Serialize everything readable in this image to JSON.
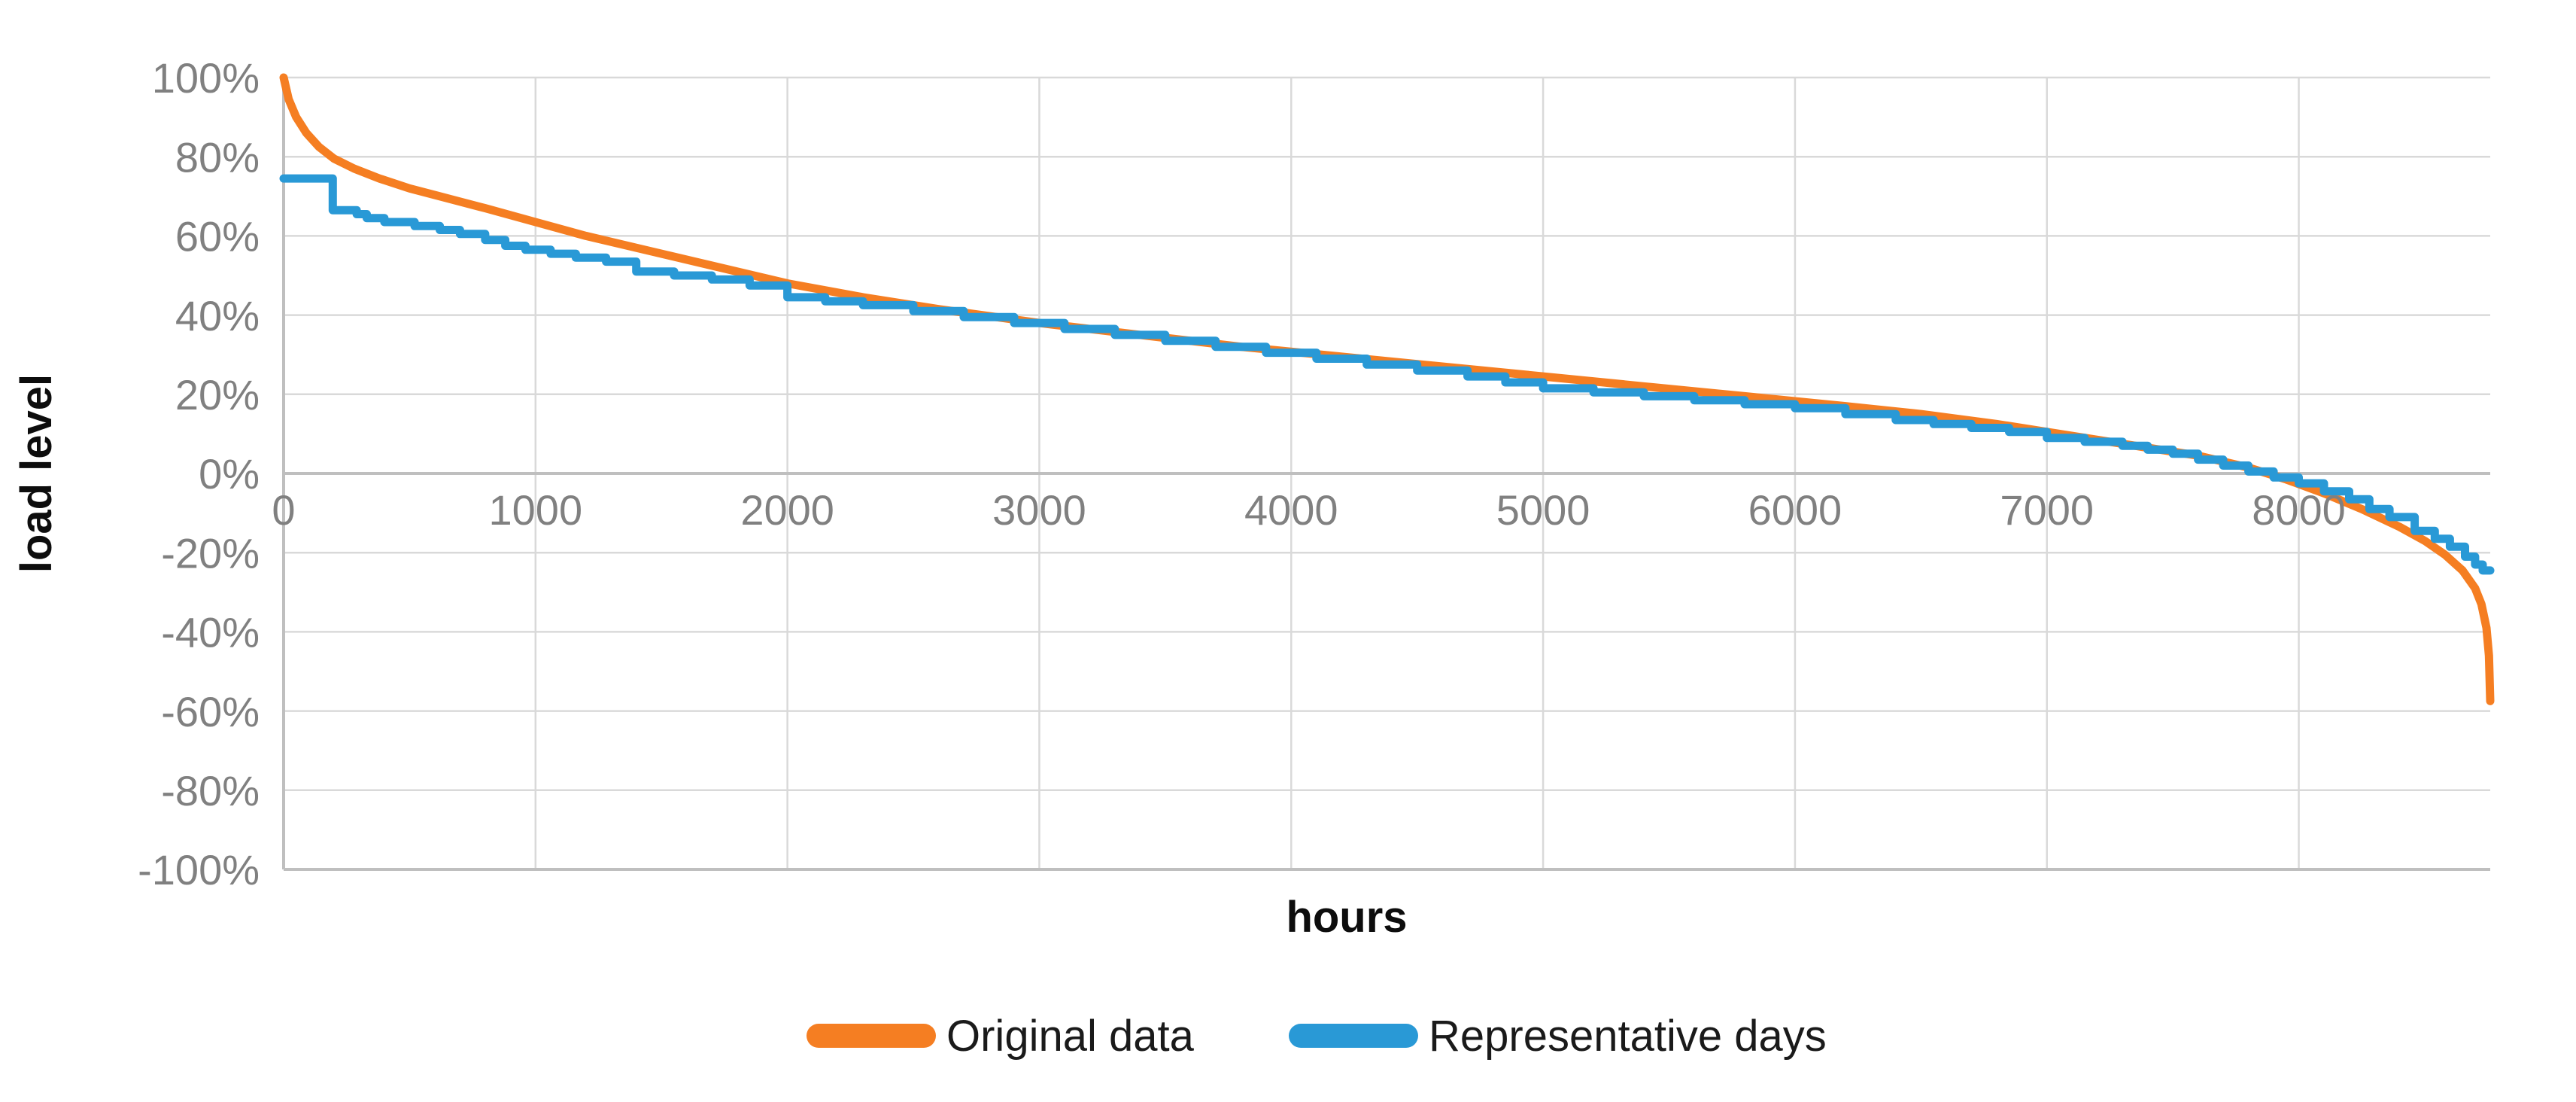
{
  "chart_data": {
    "type": "line",
    "title": "",
    "xlabel": "hours",
    "ylabel": "load level",
    "x_min": 0,
    "x_max": 8760,
    "y_min": -100,
    "y_max": 100,
    "x_ticks": [
      0,
      1000,
      2000,
      3000,
      4000,
      5000,
      6000,
      7000,
      8000
    ],
    "x_tick_labels": [
      "0",
      "1000",
      "2000",
      "3000",
      "4000",
      "5000",
      "6000",
      "7000",
      "8000"
    ],
    "y_ticks": [
      100,
      80,
      60,
      40,
      20,
      0,
      -20,
      -40,
      -60,
      -80,
      -100
    ],
    "y_tick_labels": [
      "100%",
      "80%",
      "60%",
      "40%",
      "20%",
      "0%",
      "-20%",
      "-40%",
      "-60%",
      "-80%",
      "-100%"
    ],
    "grid": true,
    "legend_position": "bottom-center",
    "colors": {
      "background": "#FFFFFF",
      "gridline": "#D9D9D9",
      "axis_line": "#BFBFBF",
      "tick_label": "#808080",
      "axis_title": "#0D0D0D",
      "legend_text": "#1A1A1A"
    },
    "series": [
      {
        "name": "Original data",
        "color": "#F57E22",
        "style": "line",
        "points": [
          [
            0,
            100
          ],
          [
            20,
            94.5
          ],
          [
            50,
            90
          ],
          [
            90,
            86
          ],
          [
            140,
            82.5
          ],
          [
            200,
            79.5
          ],
          [
            280,
            77
          ],
          [
            380,
            74.5
          ],
          [
            500,
            72
          ],
          [
            650,
            69.5
          ],
          [
            800,
            67
          ],
          [
            1000,
            63.5
          ],
          [
            1200,
            60
          ],
          [
            1400,
            57
          ],
          [
            1700,
            52.5
          ],
          [
            2000,
            48
          ],
          [
            2300,
            44.5
          ],
          [
            2600,
            41.5
          ],
          [
            3000,
            38
          ],
          [
            3400,
            35
          ],
          [
            3800,
            32
          ],
          [
            4200,
            29.5
          ],
          [
            4600,
            27
          ],
          [
            5000,
            24.5
          ],
          [
            5400,
            22
          ],
          [
            5800,
            19.5
          ],
          [
            6200,
            17
          ],
          [
            6500,
            15
          ],
          [
            6800,
            12.5
          ],
          [
            7100,
            9.5
          ],
          [
            7400,
            6.5
          ],
          [
            7600,
            4.5
          ],
          [
            7800,
            1.5
          ],
          [
            7950,
            -1.5
          ],
          [
            8100,
            -5
          ],
          [
            8250,
            -9
          ],
          [
            8400,
            -13.5
          ],
          [
            8500,
            -17
          ],
          [
            8580,
            -20.5
          ],
          [
            8650,
            -24.5
          ],
          [
            8700,
            -29
          ],
          [
            8725,
            -33
          ],
          [
            8745,
            -39
          ],
          [
            8755,
            -46
          ],
          [
            8760,
            -57.5
          ]
        ]
      },
      {
        "name": "Representative days",
        "color": "#2999D6",
        "style": "step-after",
        "points": [
          [
            0,
            74.5
          ],
          [
            195,
            66.5
          ],
          [
            290,
            65.5
          ],
          [
            330,
            64.5
          ],
          [
            400,
            63.5
          ],
          [
            520,
            62.5
          ],
          [
            620,
            61.5
          ],
          [
            700,
            60.5
          ],
          [
            800,
            59
          ],
          [
            880,
            57.5
          ],
          [
            960,
            56.5
          ],
          [
            1060,
            55.5
          ],
          [
            1160,
            54.5
          ],
          [
            1280,
            53.5
          ],
          [
            1400,
            51
          ],
          [
            1550,
            50
          ],
          [
            1700,
            49
          ],
          [
            1850,
            47.5
          ],
          [
            2000,
            44.5
          ],
          [
            2150,
            43.5
          ],
          [
            2300,
            42.5
          ],
          [
            2500,
            41
          ],
          [
            2700,
            39.5
          ],
          [
            2900,
            38
          ],
          [
            3100,
            36.5
          ],
          [
            3300,
            35
          ],
          [
            3500,
            33.5
          ],
          [
            3700,
            32
          ],
          [
            3900,
            30.5
          ],
          [
            4100,
            29
          ],
          [
            4300,
            27.5
          ],
          [
            4500,
            26
          ],
          [
            4700,
            24.5
          ],
          [
            4850,
            23
          ],
          [
            5000,
            21.5
          ],
          [
            5200,
            20.5
          ],
          [
            5400,
            19.5
          ],
          [
            5600,
            18.5
          ],
          [
            5800,
            17.5
          ],
          [
            6000,
            16.5
          ],
          [
            6200,
            15
          ],
          [
            6400,
            13.5
          ],
          [
            6550,
            12.5
          ],
          [
            6700,
            11.5
          ],
          [
            6850,
            10.5
          ],
          [
            7000,
            9
          ],
          [
            7150,
            8
          ],
          [
            7300,
            7
          ],
          [
            7400,
            6
          ],
          [
            7500,
            5
          ],
          [
            7600,
            3.5
          ],
          [
            7700,
            2
          ],
          [
            7800,
            0.5
          ],
          [
            7900,
            -1
          ],
          [
            8000,
            -2.5
          ],
          [
            8100,
            -4.5
          ],
          [
            8200,
            -6.5
          ],
          [
            8280,
            -9
          ],
          [
            8360,
            -11
          ],
          [
            8460,
            -14.5
          ],
          [
            8540,
            -16.5
          ],
          [
            8600,
            -18.5
          ],
          [
            8660,
            -21
          ],
          [
            8700,
            -23
          ],
          [
            8730,
            -24.5
          ],
          [
            8760,
            -24.5
          ]
        ]
      }
    ]
  }
}
